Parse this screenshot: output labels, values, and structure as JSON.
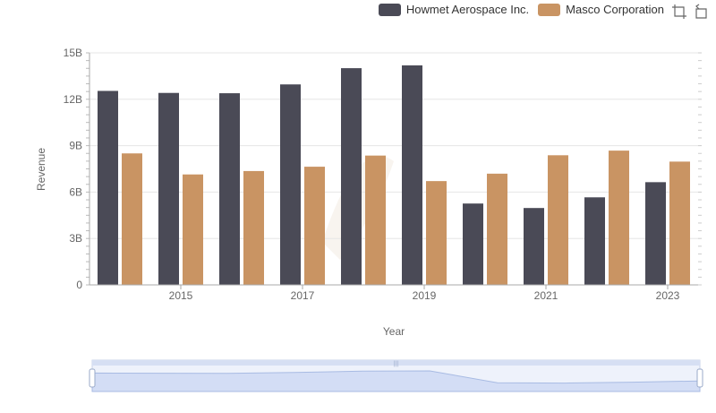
{
  "legend": {
    "items": [
      {
        "label": "Howmet Aerospace Inc.",
        "color": "#4a4a56"
      },
      {
        "label": "Masco Corporation",
        "color": "#c99463"
      }
    ]
  },
  "toolbar": {
    "icons": [
      "zoom-select-icon",
      "zoom-reset-icon"
    ]
  },
  "chart_data": {
    "type": "bar",
    "xlabel": "Year",
    "ylabel": "Revenue",
    "ylim": [
      0,
      15000000000
    ],
    "y_ticks": [
      "0",
      "3B",
      "6B",
      "9B",
      "12B",
      "15B"
    ],
    "x_tick_labels": [
      "2015",
      "2017",
      "2019",
      "2021",
      "2023"
    ],
    "categories": [
      "2014",
      "2015",
      "2016",
      "2017",
      "2018",
      "2019",
      "2020",
      "2021",
      "2022",
      "2023"
    ],
    "series": [
      {
        "name": "Howmet Aerospace Inc.",
        "color": "#4a4a56",
        "values": [
          12540000000,
          12410000000,
          12390000000,
          12960000000,
          14010000000,
          14190000000,
          5260000000,
          4970000000,
          5660000000,
          6640000000
        ]
      },
      {
        "name": "Masco Corporation",
        "color": "#c99463",
        "values": [
          8500000000,
          7140000000,
          7360000000,
          7640000000,
          8360000000,
          6710000000,
          7190000000,
          8380000000,
          8680000000,
          7970000000
        ]
      }
    ],
    "grid": true,
    "legend_position": "top-right"
  }
}
